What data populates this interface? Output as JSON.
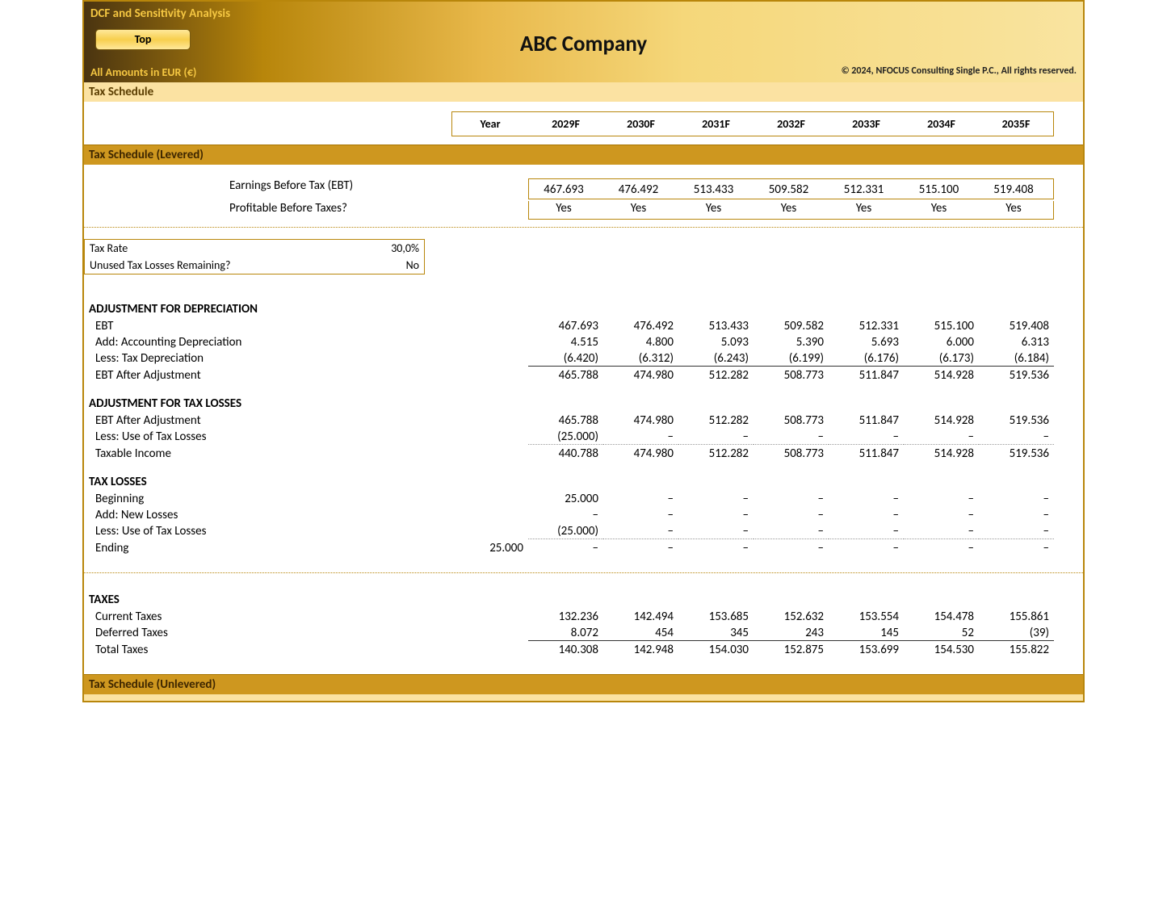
{
  "header": {
    "sheet_title": "DCF and Sensitivity Analysis",
    "top_button": "Top",
    "company": "ABC Company",
    "amounts_note": "All Amounts in  EUR (€)",
    "copyright": "© 2024, NFOCUS Consulting Single P.C., All rights reserved."
  },
  "bands": {
    "tax_schedule": "Tax Schedule",
    "levered": "Tax Schedule (Levered)",
    "unlevered": "Tax Schedule (Unlevered)"
  },
  "years": {
    "label": "Year",
    "cols": [
      "2029F",
      "2030F",
      "2031F",
      "2032F",
      "2033F",
      "2034F",
      "2035F"
    ]
  },
  "ebt_box": {
    "row1_label": "Earnings Before Tax (EBT)",
    "row2_label": "Profitable Before Taxes?",
    "ebt": [
      "467.693",
      "476.492",
      "513.433",
      "509.582",
      "512.331",
      "515.100",
      "519.408"
    ],
    "prof": [
      "Yes",
      "Yes",
      "Yes",
      "Yes",
      "Yes",
      "Yes",
      "Yes"
    ]
  },
  "params": {
    "tax_rate_label": "Tax Rate",
    "tax_rate_value": "30,0%",
    "losses_label": "Unused Tax Losses Remaining?",
    "losses_value": "No"
  },
  "adj_dep": {
    "heading": "ADJUSTMENT FOR DEPRECIATION",
    "rows": [
      {
        "label": "EBT",
        "v": [
          "467.693",
          "476.492",
          "513.433",
          "509.582",
          "512.331",
          "515.100",
          "519.408"
        ]
      },
      {
        "label": "Add: Accounting Depreciation",
        "v": [
          "4.515",
          "4.800",
          "5.093",
          "5.390",
          "5.693",
          "6.000",
          "6.313"
        ]
      },
      {
        "label": "Less: Tax Depreciation",
        "v": [
          "(6.420)",
          "(6.312)",
          "(6.243)",
          "(6.199)",
          "(6.176)",
          "(6.173)",
          "(6.184)"
        ],
        "underline": "solid"
      },
      {
        "label": "EBT After Adjustment",
        "v": [
          "465.788",
          "474.980",
          "512.282",
          "508.773",
          "511.847",
          "514.928",
          "519.536"
        ]
      }
    ]
  },
  "adj_loss": {
    "heading": "ADJUSTMENT FOR TAX LOSSES",
    "rows": [
      {
        "label": "EBT After Adjustment",
        "v": [
          "465.788",
          "474.980",
          "512.282",
          "508.773",
          "511.847",
          "514.928",
          "519.536"
        ]
      },
      {
        "label": "Less: Use of Tax Losses",
        "v": [
          "(25.000)",
          "–",
          "–",
          "–",
          "–",
          "–",
          "–"
        ],
        "underline": "dotted"
      },
      {
        "label": "Taxable Income",
        "v": [
          "440.788",
          "474.980",
          "512.282",
          "508.773",
          "511.847",
          "514.928",
          "519.536"
        ]
      }
    ]
  },
  "tax_losses": {
    "heading": "TAX LOSSES",
    "rows": [
      {
        "label": "Beginning",
        "pre": "",
        "v": [
          "25.000",
          "–",
          "–",
          "–",
          "–",
          "–",
          "–"
        ]
      },
      {
        "label": "Add: New Losses",
        "pre": "",
        "v": [
          "–",
          "–",
          "–",
          "–",
          "–",
          "–",
          "–"
        ]
      },
      {
        "label": "Less: Use of Tax Losses",
        "pre": "",
        "v": [
          "(25.000)",
          "–",
          "–",
          "–",
          "–",
          "–",
          "–"
        ],
        "underline": "dotted"
      },
      {
        "label": "Ending",
        "pre": "25.000",
        "v": [
          "–",
          "–",
          "–",
          "–",
          "–",
          "–",
          "–"
        ]
      }
    ]
  },
  "taxes": {
    "heading": "TAXES",
    "rows": [
      {
        "label": "Current Taxes",
        "v": [
          "132.236",
          "142.494",
          "153.685",
          "152.632",
          "153.554",
          "154.478",
          "155.861"
        ]
      },
      {
        "label": "Deferred Taxes",
        "v": [
          "8.072",
          "454",
          "345",
          "243",
          "145",
          "52",
          "(39)"
        ],
        "underline": "solid"
      },
      {
        "label": "Total Taxes",
        "v": [
          "140.308",
          "142.948",
          "154.030",
          "152.875",
          "153.699",
          "154.530",
          "155.822"
        ]
      }
    ]
  },
  "colors": {
    "band_light": "#fbe2a2",
    "band_dark": "#ce971f",
    "border_gold": "#b8860b",
    "header_text": "#f5c742"
  }
}
